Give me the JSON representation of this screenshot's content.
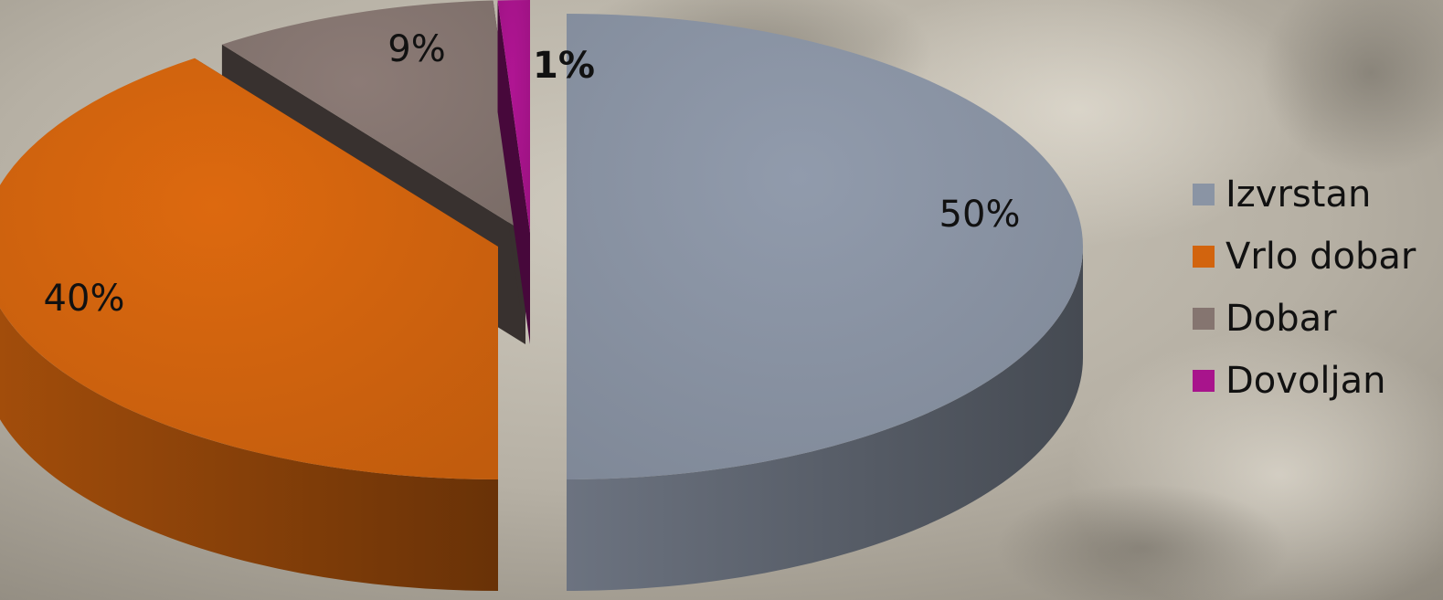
{
  "chart_data": {
    "type": "pie",
    "title": "",
    "categories": [
      "Izvrstan",
      "Vrlo dobar",
      "Dobar",
      "Dovoljan"
    ],
    "values": [
      50,
      40,
      9,
      1
    ],
    "data_labels": [
      "50%",
      "40%",
      "9%",
      "1%"
    ],
    "colors": [
      "#8a94a4",
      "#d2640e",
      "#857570",
      "#a8148c"
    ],
    "style": "3d-exploded",
    "legend_position": "right"
  }
}
